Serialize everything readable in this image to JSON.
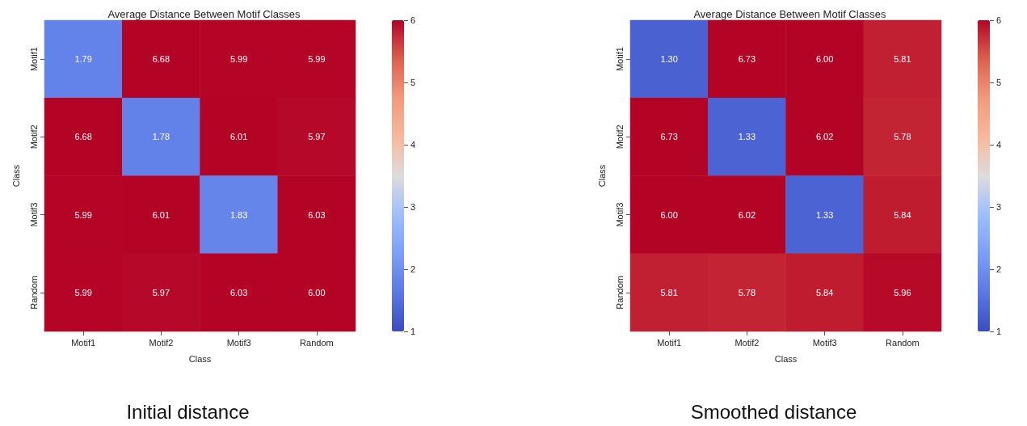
{
  "chart_data": [
    {
      "type": "heatmap",
      "title": "Average Distance Between Motif Classes",
      "xlabel": "Class",
      "ylabel": "Class",
      "categories": [
        "Motif1",
        "Motif2",
        "Motif3",
        "Random"
      ],
      "y_categories": [
        "Motif1",
        "Motif2",
        "Motif3",
        "Random"
      ],
      "cells": [
        [
          1.79,
          6.68,
          5.99,
          5.99
        ],
        [
          6.68,
          1.78,
          6.01,
          5.97
        ],
        [
          5.99,
          6.01,
          1.83,
          6.03
        ],
        [
          5.99,
          5.97,
          6.03,
          6
        ]
      ],
      "cell_labels": [
        [
          "1.79",
          "6.68",
          "5.99",
          "5.99"
        ],
        [
          "6.68",
          "1.78",
          "6.01",
          "5.97"
        ],
        [
          "5.99",
          "6.01",
          "1.83",
          "6.03"
        ],
        [
          "5.99",
          "5.97",
          "6.03",
          "6.00"
        ]
      ],
      "clim": [
        1,
        6
      ],
      "cticks": [
        1,
        2,
        3,
        4,
        5,
        6
      ],
      "annotations": [
        "Initial distance"
      ]
    },
    {
      "type": "heatmap",
      "title": "Average Distance Between Motif Classes",
      "xlabel": "Class",
      "ylabel": "Class",
      "categories": [
        "Motif1",
        "Motif2",
        "Motif3",
        "Random"
      ],
      "y_categories": [
        "Motif1",
        "Motif2",
        "Motif3",
        "Random"
      ],
      "cells": [
        [
          1.3,
          6.73,
          6,
          5.81
        ],
        [
          6.73,
          1.33,
          6.02,
          5.78
        ],
        [
          6,
          6.02,
          1.33,
          5.84
        ],
        [
          5.81,
          5.78,
          5.84,
          5.96
        ]
      ],
      "cell_labels": [
        [
          "1.30",
          "6.73",
          "6.00",
          "5.81"
        ],
        [
          "6.73",
          "1.33",
          "6.02",
          "5.78"
        ],
        [
          "6.00",
          "6.02",
          "1.33",
          "5.84"
        ],
        [
          "5.81",
          "5.78",
          "5.84",
          "5.96"
        ]
      ],
      "clim": [
        1,
        6
      ],
      "cticks": [
        1,
        2,
        3,
        4,
        5,
        6
      ],
      "annotations": [
        "Smoothed distance"
      ]
    }
  ]
}
